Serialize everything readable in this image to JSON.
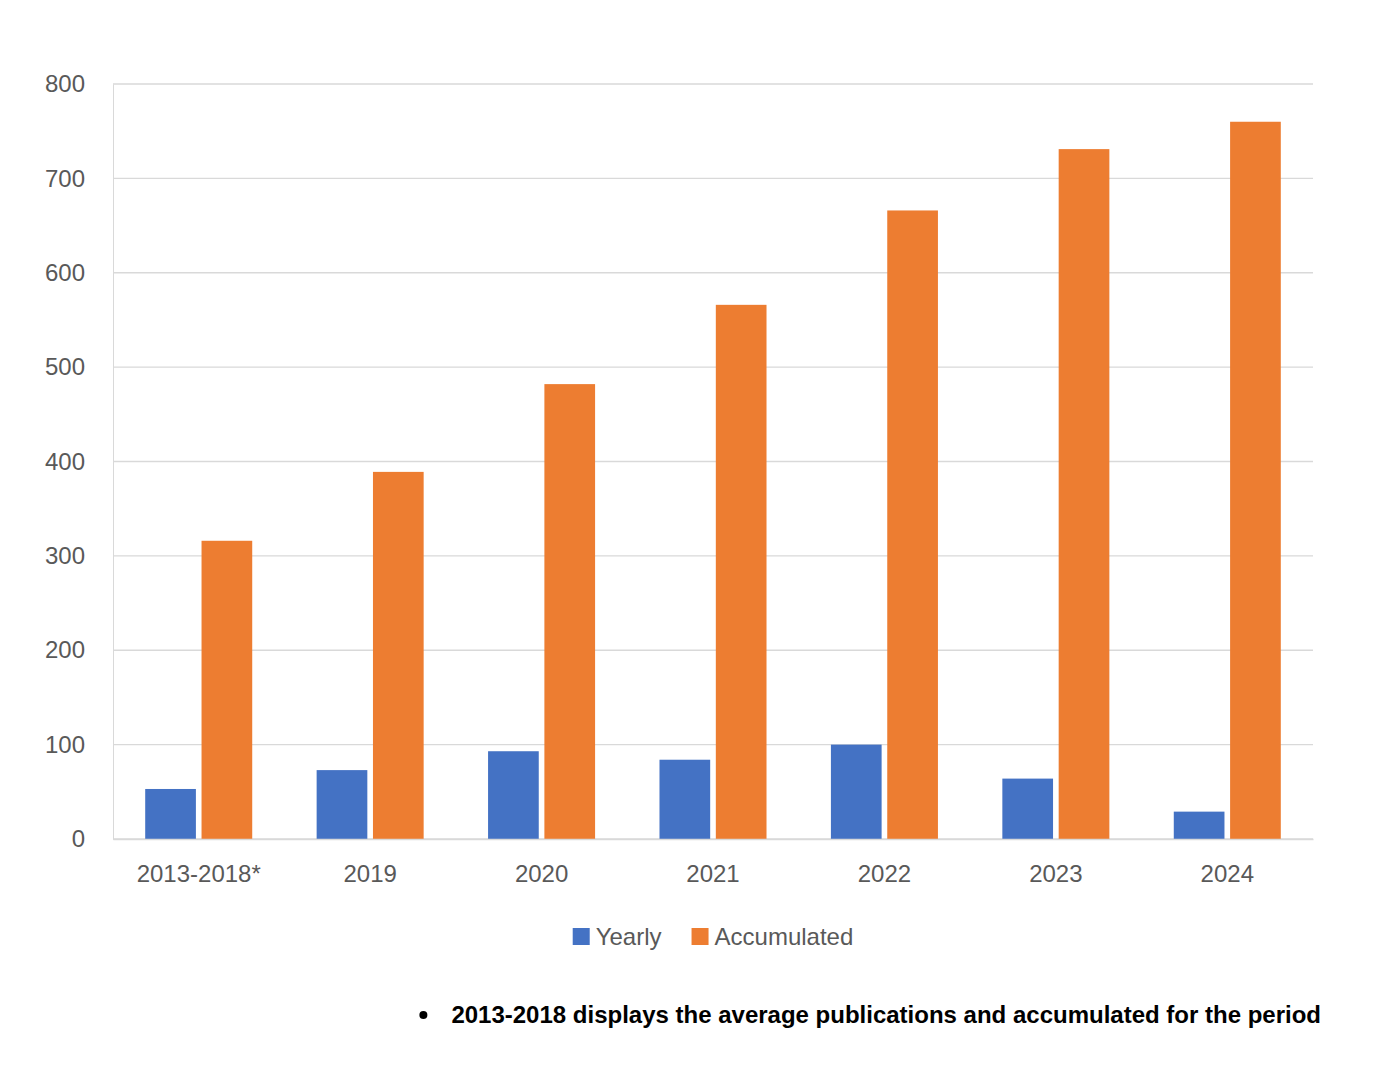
{
  "chart_data": {
    "type": "bar",
    "categories": [
      "2013-2018*",
      "2019",
      "2020",
      "2021",
      "2022",
      "2023",
      "2024"
    ],
    "series": [
      {
        "name": "Yearly",
        "color": "#4472c4",
        "values": [
          53,
          73,
          93,
          84,
          100,
          64,
          29
        ]
      },
      {
        "name": "Accumulated",
        "color": "#ed7d31",
        "values": [
          316,
          389,
          482,
          566,
          666,
          731,
          760
        ]
      }
    ],
    "ylim": [
      0,
      800
    ],
    "yticks": [
      0,
      100,
      200,
      300,
      400,
      500,
      600,
      700,
      800
    ],
    "grid": true,
    "legend": "bottom",
    "annotations": [
      "2013-2018  displays the average publications and accumulated for the period"
    ]
  }
}
